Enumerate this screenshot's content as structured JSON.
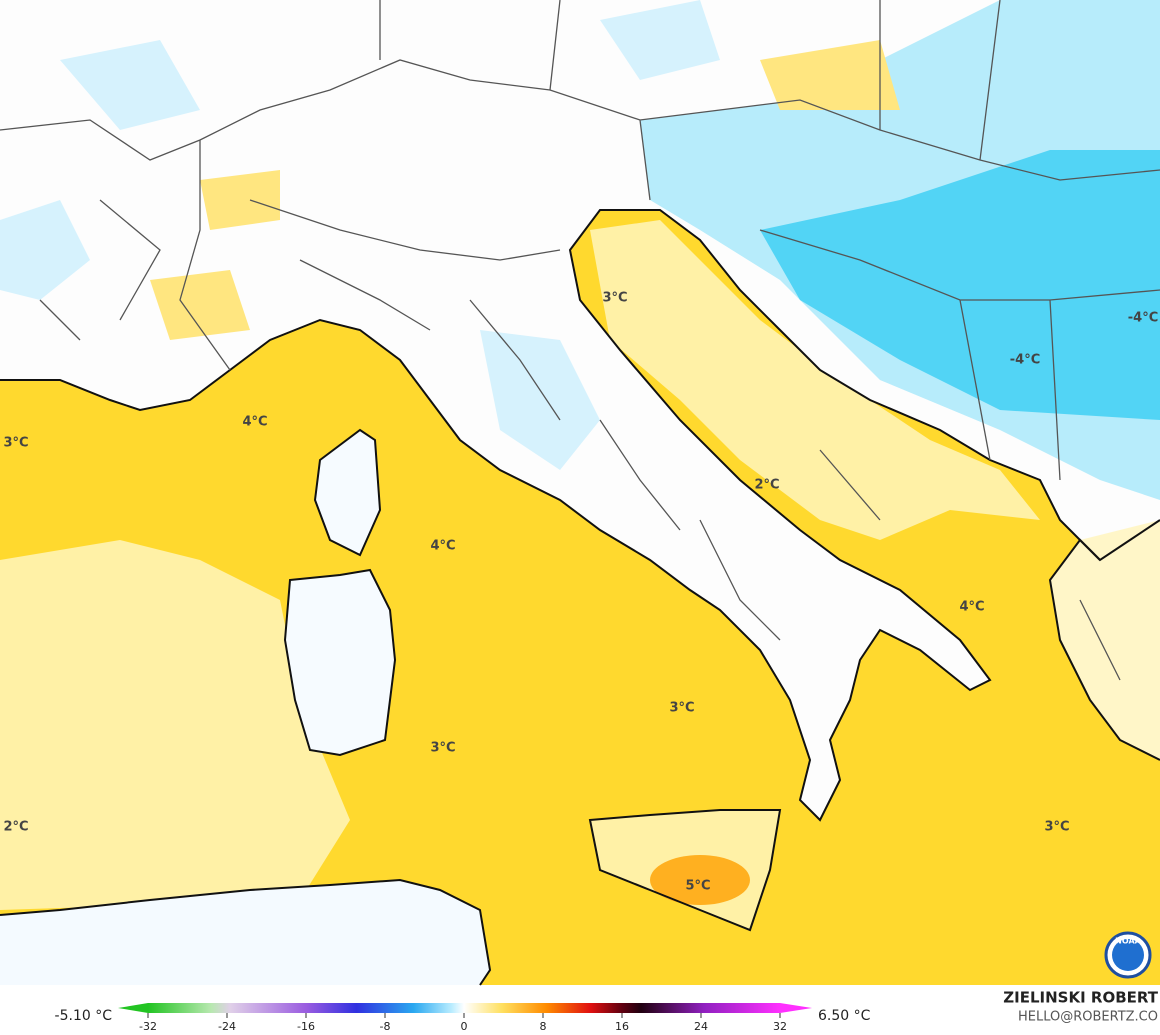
{
  "map": {
    "contour_labels": [
      "3°C",
      "4°C",
      "3°C",
      "4°C",
      "2°C",
      "4°C",
      "3°C",
      "3°C",
      "2°C",
      "3°C",
      "5°C",
      "-4°C",
      "-4°C"
    ],
    "colorbar": {
      "min_label": "-5.10 °C",
      "max_label": "6.50 °C",
      "range": [
        -32,
        32
      ],
      "ticks": [
        -32,
        -24,
        -16,
        -8,
        0,
        8,
        16,
        24,
        32
      ]
    },
    "credits": {
      "author": "ZIELINSKI ROBERT",
      "contact": "HELLO@ROBERTZ.CO",
      "logo": "NOAA"
    }
  }
}
